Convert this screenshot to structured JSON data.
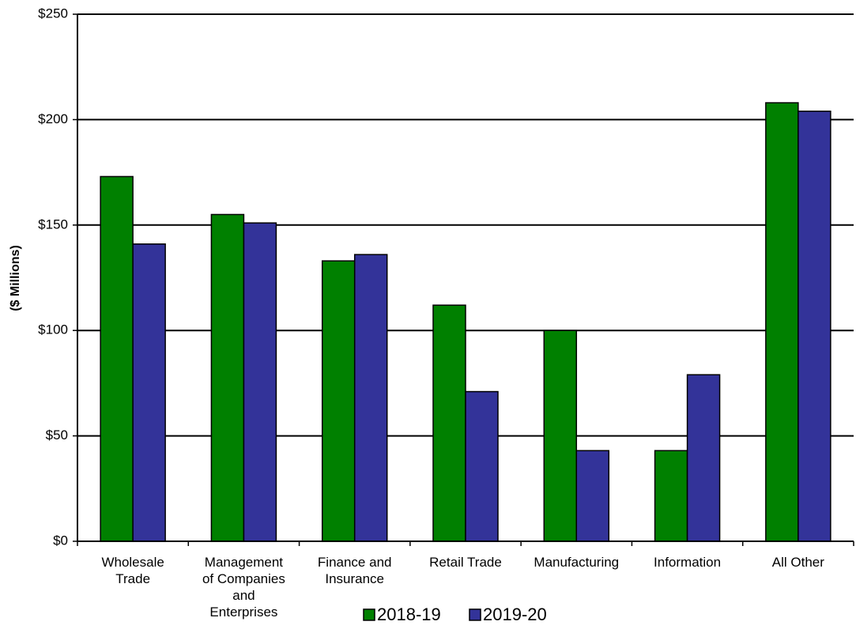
{
  "chart_data": {
    "type": "bar",
    "y_label": "($ Millions)",
    "categories": [
      "Wholesale Trade",
      "Management of Companies and Enterprises",
      "Finance and Insurance",
      "Retail Trade",
      "Manufacturing",
      "Information",
      "All Other"
    ],
    "series": [
      {
        "name": "2018-19",
        "color": "#008000",
        "values": [
          173,
          155,
          133,
          112,
          100,
          43,
          208
        ]
      },
      {
        "name": "2019-20",
        "color": "#333399",
        "values": [
          141,
          151,
          136,
          71,
          43,
          79,
          204
        ]
      }
    ],
    "ylim": [
      0,
      250
    ],
    "yticks": [
      {
        "value": 0,
        "label": "$0"
      },
      {
        "value": 50,
        "label": "$50"
      },
      {
        "value": 100,
        "label": "$100"
      },
      {
        "value": 150,
        "label": "$150"
      },
      {
        "value": 200,
        "label": "$200"
      },
      {
        "value": 250,
        "label": "$250"
      }
    ],
    "grid": true,
    "legend": "bottom"
  }
}
